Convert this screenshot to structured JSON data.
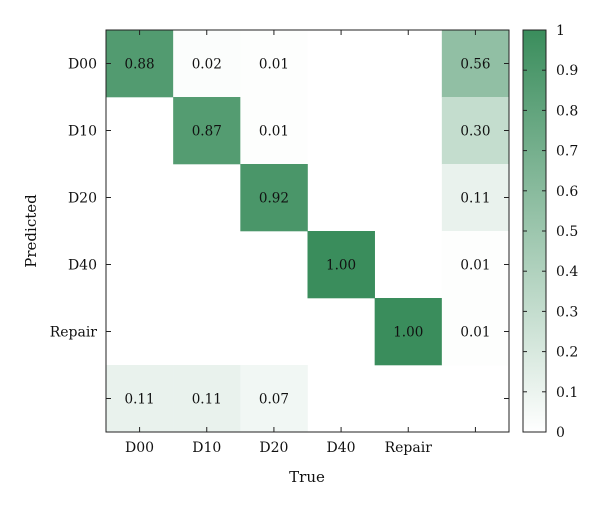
{
  "chart_data": {
    "type": "heatmap",
    "title": "",
    "xlabel": "True",
    "ylabel": "Predicted",
    "x_categories": [
      "D00",
      "D10",
      "D20",
      "D40",
      "Repair",
      ""
    ],
    "y_categories": [
      "D00",
      "D10",
      "D20",
      "D40",
      "Repair",
      ""
    ],
    "cells": [
      [
        0.88,
        0.02,
        0.01,
        null,
        null,
        0.56
      ],
      [
        null,
        0.87,
        0.01,
        null,
        null,
        0.3
      ],
      [
        null,
        null,
        0.92,
        null,
        null,
        0.11
      ],
      [
        null,
        null,
        null,
        1.0,
        null,
        0.01
      ],
      [
        null,
        null,
        null,
        null,
        1.0,
        0.01
      ],
      [
        0.11,
        0.11,
        0.07,
        null,
        null,
        null
      ]
    ],
    "cell_labels": [
      [
        "0.88",
        "0.02",
        "0.01",
        "",
        "",
        "0.56"
      ],
      [
        "",
        "0.87",
        "0.01",
        "",
        "",
        "0.30"
      ],
      [
        "",
        "",
        "0.92",
        "",
        "",
        "0.11"
      ],
      [
        "",
        "",
        "",
        "1.00",
        "",
        "0.01"
      ],
      [
        "",
        "",
        "",
        "",
        "1.00",
        "0.01"
      ],
      [
        "0.11",
        "0.11",
        "0.07",
        "",
        "",
        ""
      ]
    ],
    "colorscale": {
      "min_color": "#ffffff",
      "max_color": "#3a8d5c",
      "min": 0,
      "max": 1
    },
    "colorbar": {
      "ticks": [
        0,
        0.1,
        0.2,
        0.3,
        0.4,
        0.5,
        0.6,
        0.7,
        0.8,
        0.9,
        1
      ],
      "tick_labels": [
        "0",
        "0.1",
        "0.2",
        "0.3",
        "0.4",
        "0.5",
        "0.6",
        "0.7",
        "0.8",
        "0.9",
        "1"
      ]
    }
  }
}
